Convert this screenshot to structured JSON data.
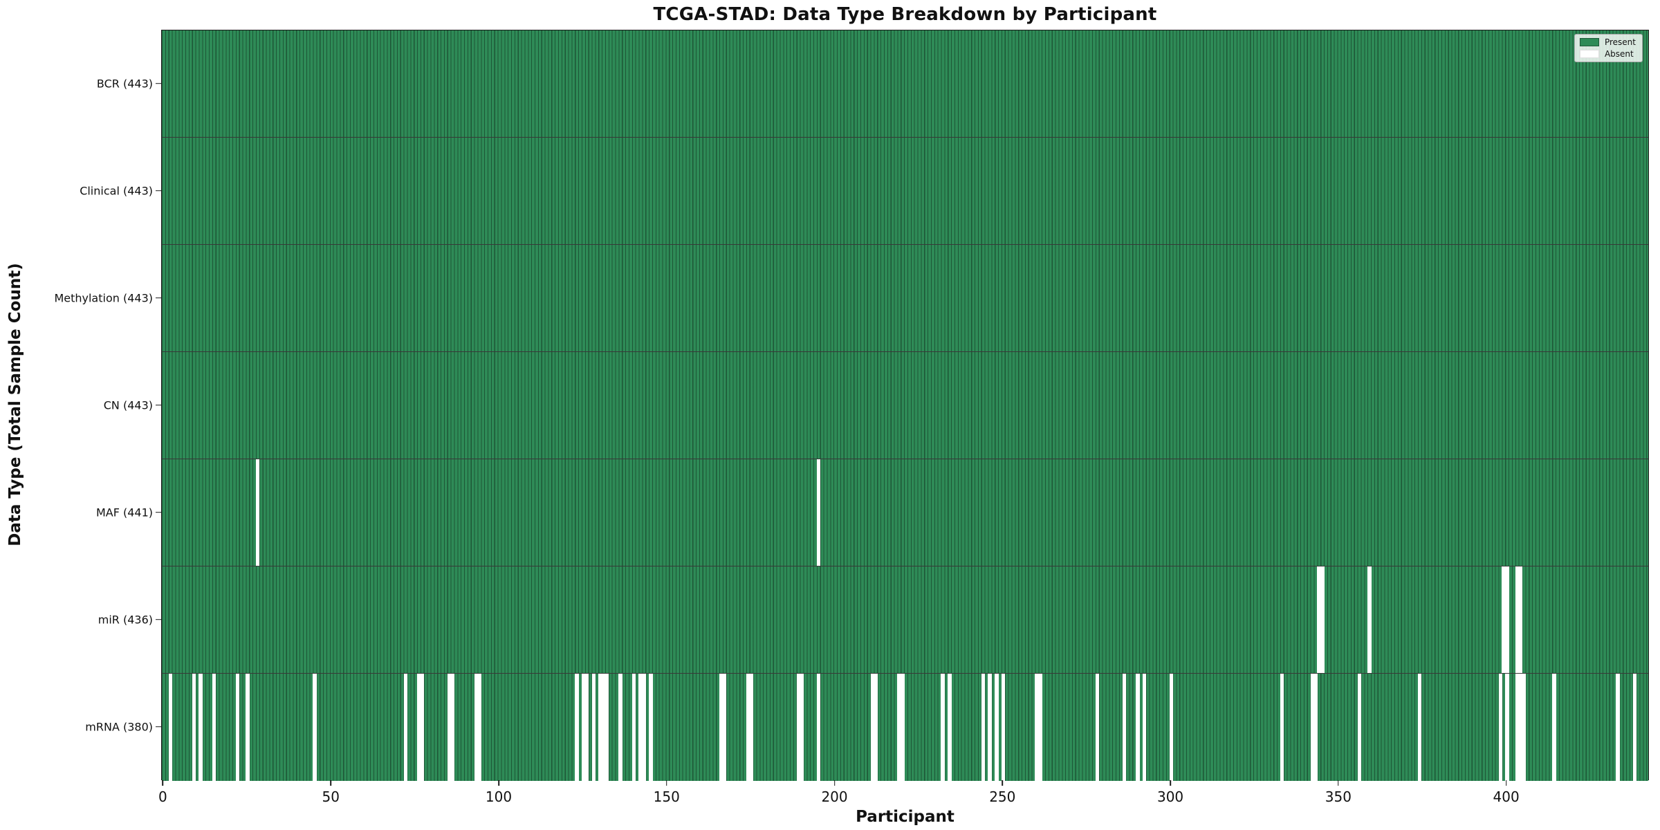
{
  "title": "TCGA-STAD: Data Type Breakdown by Participant",
  "x_axis": {
    "label": "Participant",
    "ticks": [
      0,
      50,
      100,
      150,
      200,
      250,
      300,
      350,
      400
    ]
  },
  "y_axis": {
    "label": "Data Type (Total Sample Count)"
  },
  "legend": {
    "items": [
      {
        "label": "Present",
        "color": "#2e8b57"
      },
      {
        "label": "Absent",
        "color": "#ffffff"
      }
    ]
  },
  "colors": {
    "present": "#2e8b57",
    "absent": "#ffffff",
    "bar_edge": "rgba(0,0,0,0.38)",
    "plot_border": "#1a1a1a"
  },
  "chart_data": {
    "type": "heatmap",
    "x_label": "Participant",
    "y_label": "Data Type (Total Sample Count)",
    "n_participants": 443,
    "x_ticks": [
      0,
      50,
      100,
      150,
      200,
      250,
      300,
      350,
      400
    ],
    "legend_position": "upper right",
    "grid": false,
    "rows": [
      {
        "name": "BCR",
        "label": "BCR (443)",
        "total": 443,
        "absent": []
      },
      {
        "name": "Clinical",
        "label": "Clinical (443)",
        "total": 443,
        "absent": []
      },
      {
        "name": "Methylation",
        "label": "Methylation (443)",
        "total": 443,
        "absent": []
      },
      {
        "name": "CN",
        "label": "CN (443)",
        "total": 443,
        "absent": []
      },
      {
        "name": "MAF",
        "label": "MAF (441)",
        "total": 441,
        "absent": [
          28,
          195
        ]
      },
      {
        "name": "miR",
        "label": "miR (436)",
        "total": 436,
        "absent": [
          344,
          345,
          359,
          399,
          400,
          403,
          404
        ]
      },
      {
        "name": "mRNA",
        "label": "mRNA (380)",
        "total": 380,
        "absent": [
          2,
          9,
          11,
          15,
          22,
          25,
          45,
          72,
          76,
          77,
          85,
          86,
          93,
          94,
          123,
          125,
          126,
          128,
          130,
          131,
          132,
          136,
          140,
          142,
          143,
          145,
          166,
          167,
          174,
          175,
          189,
          190,
          195,
          211,
          212,
          219,
          220,
          232,
          234,
          244,
          246,
          248,
          250,
          260,
          261,
          278,
          286,
          290,
          292,
          300,
          333,
          342,
          343,
          356,
          374,
          398,
          400,
          403,
          404,
          405,
          414,
          433,
          438
        ]
      }
    ]
  }
}
